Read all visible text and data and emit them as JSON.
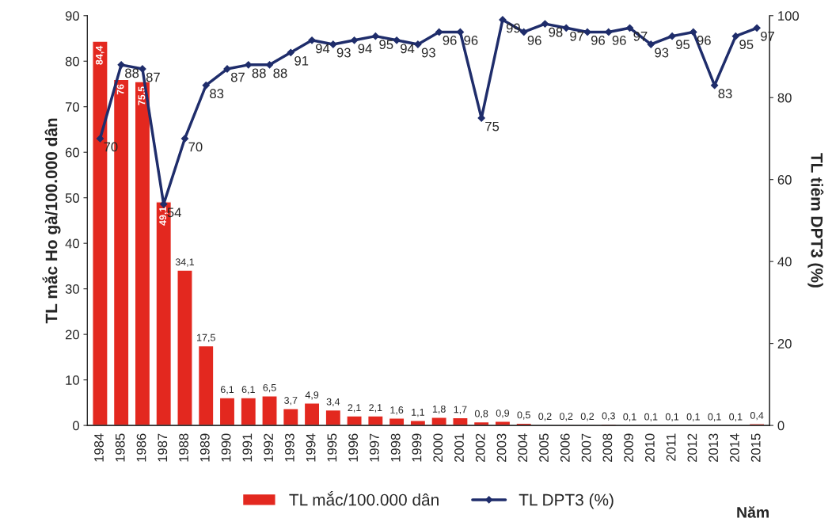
{
  "chart_data": {
    "type": "bar",
    "categories": [
      "1984",
      "1985",
      "1986",
      "1987",
      "1988",
      "1989",
      "1990",
      "1991",
      "1992",
      "1993",
      "1994",
      "1995",
      "1996",
      "1997",
      "1998",
      "1999",
      "2000",
      "2001",
      "2002",
      "2003",
      "2004",
      "2005",
      "2006",
      "2007",
      "2008",
      "2009",
      "2010",
      "2011",
      "2012",
      "2013",
      "2014",
      "2015"
    ],
    "series": [
      {
        "name": "TL mắc/100.000 dân",
        "color": "#e3281f",
        "values": [
          84.4,
          76,
          75.5,
          49.1,
          34.1,
          17.5,
          6.1,
          6.1,
          6.5,
          3.7,
          4.9,
          3.4,
          2.1,
          2.1,
          1.6,
          1.1,
          1.8,
          1.7,
          0.8,
          0.9,
          0.5,
          0.2,
          0.2,
          0.2,
          0.3,
          0.1,
          0.1,
          0.1,
          0.1,
          0.1,
          0.1,
          0.4
        ],
        "value_labels": [
          "84,4",
          "76",
          "75,5",
          "49,1",
          "34,1",
          "17,5",
          "6,1",
          "6,1",
          "6,5",
          "3,7",
          "4,9",
          "3,4",
          "2,1",
          "2,1",
          "1,6",
          "1,1",
          "1,8",
          "1,7",
          "0,8",
          "0,9",
          "0,5",
          "0,2",
          "0,2",
          "0,2",
          "0,3",
          "0,1",
          "0,1",
          "0,1",
          "0,1",
          "0,1",
          "0,1",
          "0,4"
        ]
      },
      {
        "name": "TL DPT3 (%)",
        "type": "line",
        "axis": "y2",
        "color": "#1f2d6b",
        "marker": "diamond",
        "line_style": "solid",
        "values": [
          70,
          88,
          87,
          54,
          70,
          83,
          87,
          88,
          88,
          91,
          94,
          93,
          94,
          95,
          94,
          93,
          96,
          96,
          75,
          99,
          96,
          98,
          97,
          96,
          96,
          97,
          93,
          95,
          96,
          83,
          95,
          97
        ],
        "value_labels": [
          "70",
          "88",
          "87",
          "54",
          "70",
          "83",
          "87",
          "88",
          "88",
          "91",
          "94",
          "93",
          "94",
          "95",
          "94",
          "93",
          "96",
          "96",
          "75",
          "99",
          "96",
          "98",
          "97",
          "96",
          "96",
          "97",
          "93",
          "95",
          "96",
          "83",
          "95",
          "97"
        ]
      }
    ],
    "xlabel": "Năm",
    "ylabel": "TL mắc Ho gà/100.000 dân",
    "y2label": "TL tiêm DPT3 (%)",
    "ylim": [
      0,
      90
    ],
    "yticks": [
      0,
      10,
      20,
      30,
      40,
      50,
      60,
      70,
      80,
      90
    ],
    "y2lim": [
      0,
      100
    ],
    "y2ticks": [
      0,
      20,
      40,
      60,
      80,
      100
    ],
    "grid": false,
    "legend": "bottom"
  }
}
